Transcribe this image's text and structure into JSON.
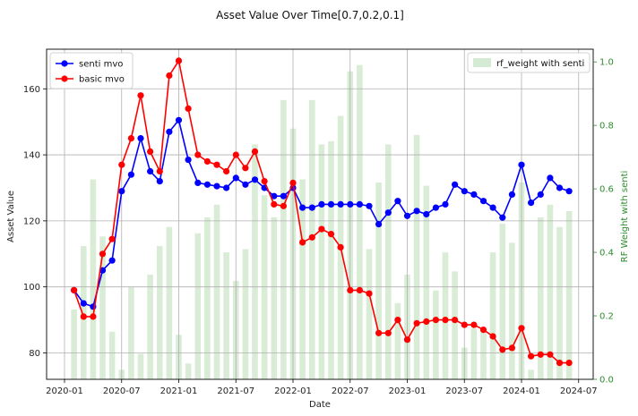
{
  "chart_data": {
    "type": "line",
    "title": "Asset Value Over Time[0.7,0.2,0.1]",
    "xlabel": "Date",
    "ylabel": "Asset Value",
    "ylabel_right": "RF Weight with senti",
    "ylim": [
      72,
      172
    ],
    "ylim_right": [
      0,
      1.04
    ],
    "x_ticks": [
      "2020-01",
      "2020-07",
      "2021-01",
      "2021-07",
      "2022-01",
      "2022-07",
      "2023-01",
      "2023-07",
      "2024-01",
      "2024-07"
    ],
    "y_ticks": [
      80,
      100,
      120,
      140,
      160
    ],
    "y_ticks_right": [
      "0.0",
      "0.2",
      "0.4",
      "0.6",
      "0.8",
      "1.0"
    ],
    "dates": [
      "2020-02",
      "2020-03",
      "2020-04",
      "2020-05",
      "2020-06",
      "2020-07",
      "2020-08",
      "2020-09",
      "2020-10",
      "2020-11",
      "2020-12",
      "2021-01",
      "2021-02",
      "2021-03",
      "2021-04",
      "2021-05",
      "2021-06",
      "2021-07",
      "2021-08",
      "2021-09",
      "2021-10",
      "2021-11",
      "2021-12",
      "2022-01",
      "2022-02",
      "2022-03",
      "2022-04",
      "2022-05",
      "2022-06",
      "2022-07",
      "2022-08",
      "2022-09",
      "2022-10",
      "2022-11",
      "2022-12",
      "2023-01",
      "2023-02",
      "2023-03",
      "2023-04",
      "2023-05",
      "2023-06",
      "2023-07",
      "2023-08",
      "2023-09",
      "2023-10",
      "2023-11",
      "2023-12",
      "2024-01",
      "2024-02",
      "2024-03",
      "2024-04",
      "2024-05",
      "2024-06"
    ],
    "series": [
      {
        "name": "senti mvo",
        "color": "#0000ff",
        "values": [
          99,
          95,
          94,
          105,
          108,
          129,
          134,
          145,
          135,
          132,
          147,
          150.5,
          138.5,
          131.5,
          131,
          130.5,
          130,
          133,
          131,
          132.5,
          130,
          127.5,
          127.5,
          130,
          124,
          124,
          125,
          125,
          125,
          125,
          125,
          124.5,
          119,
          122.5,
          126,
          121.5,
          123,
          122,
          124,
          125,
          131,
          129,
          128,
          126,
          124,
          121,
          128,
          137,
          125.5,
          128,
          133,
          130,
          129
        ]
      },
      {
        "name": "basic mvo",
        "color": "#ff0000",
        "values": [
          99,
          91,
          91,
          110,
          114.5,
          137,
          145,
          158,
          141,
          135,
          164,
          168.5,
          154,
          140,
          138,
          137,
          135,
          140,
          136,
          141,
          132,
          125,
          124.5,
          131.5,
          113.5,
          115,
          117.5,
          116,
          112,
          99,
          99,
          98,
          86,
          86,
          90,
          84,
          89,
          89.5,
          90,
          90,
          90,
          88.5,
          88.5,
          87,
          85,
          81,
          81.5,
          87.5,
          79,
          79.5,
          79.5,
          77,
          77
        ]
      }
    ],
    "bars": {
      "name": "rf_weight with senti",
      "color": "#b9dcb5",
      "dates": [
        "2020-02",
        "2020-03",
        "2020-04",
        "2020-05",
        "2020-06",
        "2020-07",
        "2020-08",
        "2020-09",
        "2020-10",
        "2020-11",
        "2020-12",
        "2021-01",
        "2021-02",
        "2021-03",
        "2021-04",
        "2021-05",
        "2021-06",
        "2021-07",
        "2021-08",
        "2021-09",
        "2021-10",
        "2021-11",
        "2021-12",
        "2022-01",
        "2022-02",
        "2022-03",
        "2022-04",
        "2022-05",
        "2022-06",
        "2022-07",
        "2022-08",
        "2022-09",
        "2022-10",
        "2022-11",
        "2022-12",
        "2023-01",
        "2023-02",
        "2023-03",
        "2023-04",
        "2023-05",
        "2023-06",
        "2023-07",
        "2023-08",
        "2023-09",
        "2023-10",
        "2023-11",
        "2023-12",
        "2024-01",
        "2024-02",
        "2024-03",
        "2024-04",
        "2024-05",
        "2024-06"
      ],
      "values": [
        0.22,
        0.42,
        0.63,
        0.45,
        0.15,
        0.03,
        0.29,
        0.08,
        0.33,
        0.42,
        0.48,
        0.14,
        0.05,
        0.46,
        0.51,
        0.55,
        0.4,
        0.31,
        0.41,
        0.74,
        0.58,
        0.51,
        0.88,
        0.79,
        0.63,
        0.88,
        0.74,
        0.75,
        0.83,
        0.97,
        0.99,
        0.41,
        0.62,
        0.74,
        0.24,
        0.33,
        0.77,
        0.61,
        0.28,
        0.4,
        0.34,
        0.1,
        0.16,
        0.15,
        0.4,
        0.49,
        0.43,
        0.62,
        0.03,
        0.51,
        0.55,
        0.48,
        0.53
      ]
    },
    "grid": true,
    "legend_left": "top-left",
    "legend_right": "top-right"
  }
}
